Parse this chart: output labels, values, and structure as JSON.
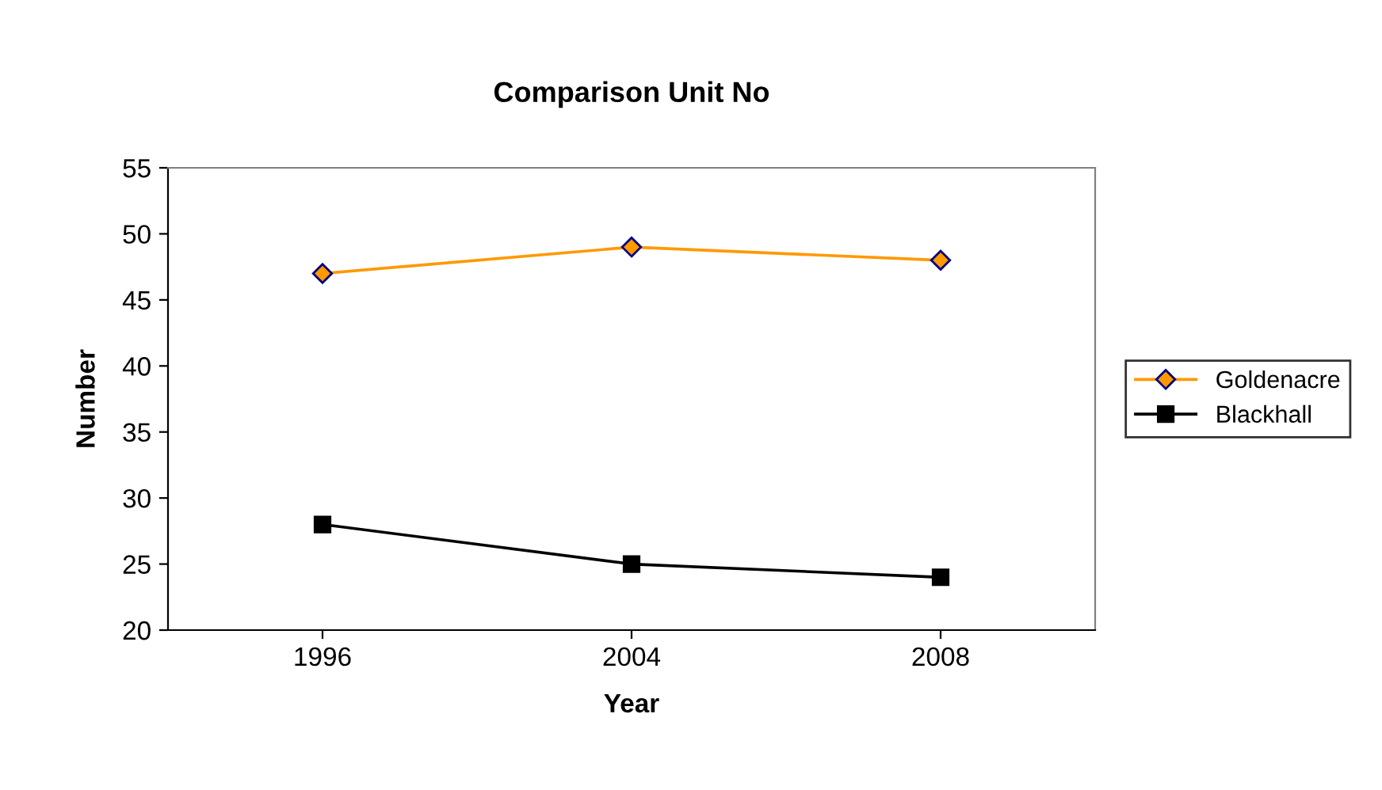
{
  "chart_data": {
    "type": "line",
    "title": "Comparison Unit No",
    "xlabel": "Year",
    "ylabel": "Number",
    "categories": [
      "1996",
      "2004",
      "2008"
    ],
    "series": [
      {
        "name": "Goldenacre",
        "color": "#ff9900",
        "marker": "diamond",
        "values": [
          47,
          49,
          48
        ]
      },
      {
        "name": "Blackhall",
        "color": "#000000",
        "marker": "square",
        "values": [
          28,
          25,
          24
        ]
      }
    ],
    "ylim": [
      20,
      55
    ],
    "yticks": [
      20,
      25,
      30,
      35,
      40,
      45,
      50,
      55
    ],
    "grid": false,
    "legend": "right"
  }
}
